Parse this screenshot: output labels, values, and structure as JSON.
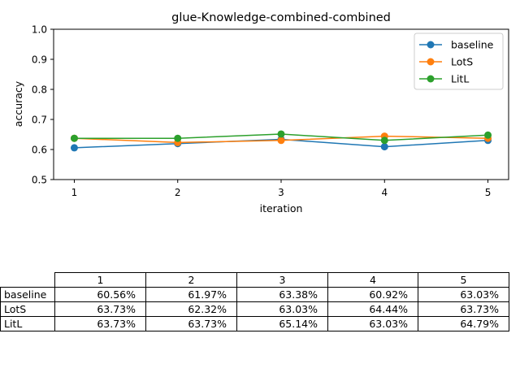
{
  "chart_data": {
    "type": "line",
    "title": "glue-Knowledge-combined-combined",
    "xlabel": "iteration",
    "ylabel": "accuracy",
    "x": [
      1,
      2,
      3,
      4,
      5
    ],
    "xticks": [
      "1",
      "2",
      "3",
      "4",
      "5"
    ],
    "ylim": [
      0.5,
      1.0
    ],
    "yticks": [
      "0.5",
      "0.6",
      "0.7",
      "0.8",
      "0.9",
      "1.0"
    ],
    "grid": false,
    "legend_position": "top-right",
    "series": [
      {
        "name": "baseline",
        "color": "#1f77b4",
        "values": [
          0.6056,
          0.6197,
          0.6338,
          0.6092,
          0.6303
        ]
      },
      {
        "name": "LotS",
        "color": "#ff7f0e",
        "values": [
          0.6373,
          0.6232,
          0.6303,
          0.6444,
          0.6373
        ]
      },
      {
        "name": "LitL",
        "color": "#2ca02c",
        "values": [
          0.6373,
          0.6373,
          0.6514,
          0.6303,
          0.6479
        ]
      }
    ]
  },
  "table": {
    "columns": [
      "1",
      "2",
      "3",
      "4",
      "5"
    ],
    "rows": [
      {
        "label": "baseline",
        "cells": [
          "60.56%",
          "61.97%",
          "63.38%",
          "60.92%",
          "63.03%"
        ]
      },
      {
        "label": "LotS",
        "cells": [
          "63.73%",
          "62.32%",
          "63.03%",
          "64.44%",
          "63.73%"
        ]
      },
      {
        "label": "LitL",
        "cells": [
          "63.73%",
          "63.73%",
          "65.14%",
          "63.03%",
          "64.79%"
        ]
      }
    ]
  }
}
